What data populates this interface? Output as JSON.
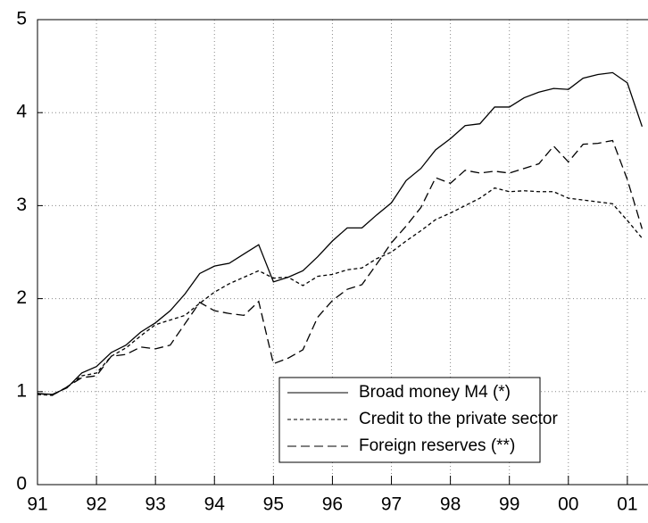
{
  "chart_data": {
    "type": "line",
    "x": [
      1991,
      1991.25,
      1991.5,
      1991.75,
      1992,
      1992.25,
      1992.5,
      1992.75,
      1993,
      1993.25,
      1993.5,
      1993.75,
      1994,
      1994.25,
      1994.5,
      1994.75,
      1995,
      1995.25,
      1995.5,
      1995.75,
      1996,
      1996.25,
      1996.5,
      1996.75,
      1997,
      1997.25,
      1997.5,
      1997.75,
      1998,
      1998.25,
      1998.5,
      1998.75,
      1999,
      1999.25,
      1999.5,
      1999.75,
      2000,
      2000.25,
      2000.5,
      2000.75,
      2001,
      2001.25
    ],
    "series": [
      {
        "name": "Broad money M4 (*)",
        "color": "#000000",
        "dash": "solid",
        "values": [
          0.98,
          0.97,
          1.04,
          1.2,
          1.27,
          1.42,
          1.5,
          1.64,
          1.74,
          1.87,
          2.05,
          2.27,
          2.35,
          2.38,
          2.48,
          2.58,
          2.18,
          2.23,
          2.3,
          2.45,
          2.62,
          2.76,
          2.76,
          2.9,
          3.03,
          3.27,
          3.4,
          3.6,
          3.72,
          3.86,
          3.88,
          4.06,
          4.06,
          4.16,
          4.22,
          4.26,
          4.25,
          4.37,
          4.41,
          4.43,
          4.32,
          3.85
        ]
      },
      {
        "name": "Credit to the private sector",
        "color": "#000000",
        "dash": "short",
        "values": [
          0.97,
          0.96,
          1.05,
          1.17,
          1.2,
          1.38,
          1.47,
          1.6,
          1.72,
          1.77,
          1.82,
          1.95,
          2.07,
          2.16,
          2.23,
          2.3,
          2.22,
          2.23,
          2.14,
          2.24,
          2.26,
          2.31,
          2.33,
          2.43,
          2.5,
          2.62,
          2.73,
          2.85,
          2.92,
          3.0,
          3.08,
          3.19,
          3.15,
          3.16,
          3.15,
          3.15,
          3.08,
          3.06,
          3.04,
          3.02,
          2.84,
          2.65
        ]
      },
      {
        "name": "Foreign reserves (**)",
        "color": "#000000",
        "dash": "long",
        "values": [
          0.98,
          0.96,
          1.05,
          1.15,
          1.17,
          1.38,
          1.4,
          1.48,
          1.46,
          1.5,
          1.73,
          1.96,
          1.87,
          1.84,
          1.82,
          1.97,
          1.3,
          1.36,
          1.45,
          1.8,
          1.98,
          2.1,
          2.15,
          2.37,
          2.6,
          2.78,
          2.98,
          3.3,
          3.24,
          3.38,
          3.35,
          3.37,
          3.35,
          3.4,
          3.45,
          3.64,
          3.47,
          3.66,
          3.67,
          3.7,
          3.28,
          2.75
        ]
      }
    ],
    "xlim": [
      1991,
      2001.35
    ],
    "xticks": [
      {
        "value": 1991,
        "label": "91"
      },
      {
        "value": 1992,
        "label": "92"
      },
      {
        "value": 1993,
        "label": "93"
      },
      {
        "value": 1994,
        "label": "94"
      },
      {
        "value": 1995,
        "label": "95"
      },
      {
        "value": 1996,
        "label": "96"
      },
      {
        "value": 1997,
        "label": "97"
      },
      {
        "value": 1998,
        "label": "98"
      },
      {
        "value": 1999,
        "label": "99"
      },
      {
        "value": 2000,
        "label": "00"
      },
      {
        "value": 2001,
        "label": "01"
      }
    ],
    "ylim": [
      0,
      5
    ],
    "yticks": [
      0,
      1,
      2,
      3,
      4,
      5
    ],
    "grid": true
  }
}
